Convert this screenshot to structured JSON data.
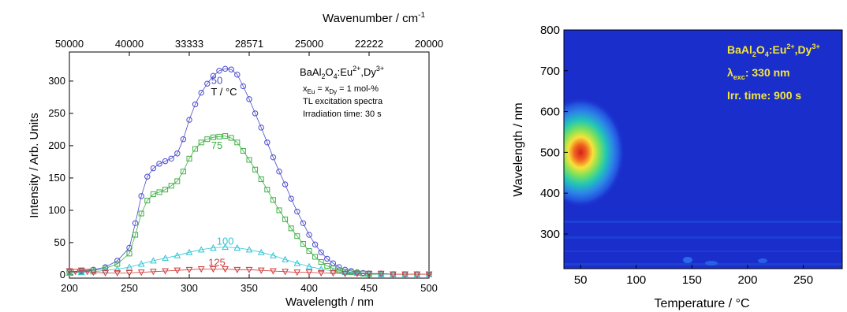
{
  "chart_data": [
    {
      "type": "scatter",
      "xlabel": "Wavelength / nm",
      "ylabel": "Intensity / Arb. Units",
      "top_axis_label": "Wavenumber / cm",
      "top_axis_label_sup": "-1",
      "xlim": [
        200,
        500
      ],
      "ylim": [
        -5,
        345
      ],
      "x_ticks": [
        "200",
        "250",
        "300",
        "350",
        "400",
        "450",
        "500"
      ],
      "y_ticks": [
        "0",
        "50",
        "100",
        "150",
        "200",
        "250",
        "300"
      ],
      "top_ticks": [
        {
          "label": "50000",
          "wl": 200
        },
        {
          "label": "40000",
          "wl": 250
        },
        {
          "label": "33333",
          "wl": 300
        },
        {
          "label": "28571",
          "wl": 350
        },
        {
          "label": "25000",
          "wl": 400
        },
        {
          "label": "22222",
          "wl": 450
        },
        {
          "label": "20000",
          "wl": 500
        }
      ],
      "annotation": {
        "title_main": "BaAl",
        "title_sub2": "2",
        "title_o": "O",
        "title_sub4": "4",
        "title_eu": ":Eu",
        "title_sup2": "2+",
        "title_dy": ",Dy",
        "title_sup3": "3+",
        "line2_x": "x",
        "line2_sub_eu": "Eu",
        "line2_eq": " = x",
        "line2_sub_dy": "Dy",
        "line2_rest": " = 1 mol-%",
        "line3": "TL excitation spectra",
        "line4": "Irradiation time: 30 s"
      },
      "temperature_header": "T / °C",
      "series": [
        {
          "name": "50",
          "color": "#4a4ad0",
          "marker": "circle",
          "x": [
            200,
            210,
            220,
            230,
            240,
            250,
            255,
            260,
            265,
            270,
            275,
            280,
            285,
            290,
            295,
            300,
            305,
            310,
            315,
            320,
            325,
            330,
            335,
            340,
            345,
            350,
            355,
            360,
            365,
            370,
            375,
            380,
            385,
            390,
            395,
            400,
            405,
            410,
            415,
            420,
            425,
            430,
            435,
            440,
            445,
            450,
            460,
            470,
            480,
            490,
            500
          ],
          "y": [
            5,
            6,
            8,
            12,
            22,
            42,
            80,
            122,
            152,
            165,
            172,
            176,
            180,
            188,
            210,
            240,
            264,
            282,
            296,
            308,
            316,
            319,
            318,
            310,
            292,
            272,
            250,
            228,
            205,
            182,
            160,
            140,
            118,
            98,
            80,
            62,
            47,
            35,
            25,
            18,
            12,
            8,
            6,
            4,
            3,
            2,
            2,
            1,
            1,
            1,
            1
          ]
        },
        {
          "name": "75",
          "color": "#3cb043",
          "marker": "square",
          "x": [
            200,
            210,
            220,
            230,
            240,
            250,
            255,
            260,
            265,
            270,
            275,
            280,
            285,
            290,
            295,
            300,
            305,
            310,
            315,
            320,
            325,
            330,
            335,
            340,
            345,
            350,
            355,
            360,
            365,
            370,
            375,
            380,
            385,
            390,
            395,
            400,
            405,
            410,
            415,
            420,
            425,
            430,
            435,
            440,
            445,
            450,
            460,
            470,
            480,
            490,
            500
          ],
          "y": [
            4,
            5,
            7,
            10,
            17,
            33,
            62,
            95,
            115,
            125,
            128,
            132,
            138,
            145,
            160,
            180,
            195,
            205,
            210,
            213,
            214,
            215,
            212,
            205,
            192,
            178,
            163,
            148,
            132,
            116,
            100,
            86,
            72,
            60,
            48,
            37,
            28,
            20,
            14,
            10,
            7,
            5,
            4,
            3,
            2,
            1,
            1,
            1,
            1,
            1,
            1
          ]
        },
        {
          "name": "100",
          "color": "#2ec4d6",
          "marker": "triangle-up",
          "x": [
            200,
            210,
            220,
            230,
            240,
            250,
            260,
            270,
            280,
            290,
            300,
            310,
            320,
            330,
            340,
            350,
            360,
            370,
            380,
            390,
            400,
            410,
            420,
            430,
            440,
            450,
            460,
            470,
            480,
            490,
            500
          ],
          "y": [
            3,
            4,
            5,
            7,
            9,
            12,
            17,
            22,
            26,
            30,
            35,
            39,
            42,
            43,
            42,
            39,
            35,
            30,
            24,
            18,
            13,
            9,
            6,
            4,
            3,
            2,
            1,
            1,
            1,
            1,
            1
          ]
        },
        {
          "name": "125",
          "color": "#d03a3a",
          "marker": "triangle-down",
          "x": [
            200,
            205,
            210,
            215,
            220,
            230,
            240,
            250,
            260,
            270,
            280,
            290,
            300,
            310,
            320,
            330,
            340,
            350,
            360,
            370,
            380,
            390,
            400,
            410,
            420,
            430,
            440,
            450,
            460,
            470,
            480,
            490,
            500
          ],
          "y": [
            6,
            5,
            7,
            5,
            4,
            3,
            3,
            3,
            4,
            5,
            6,
            7,
            8,
            9,
            9,
            9,
            8,
            8,
            7,
            6,
            5,
            4,
            4,
            3,
            3,
            2,
            2,
            2,
            2,
            1,
            1,
            1,
            1
          ]
        }
      ]
    },
    {
      "type": "heatmap",
      "xlabel": "Temperature / °C",
      "ylabel": "Wavelength / nm",
      "xlim": [
        35,
        285
      ],
      "ylim": [
        215,
        800
      ],
      "x_ticks": [
        "50",
        "100",
        "150",
        "200",
        "250"
      ],
      "y_ticks": [
        "300",
        "400",
        "500",
        "600",
        "700",
        "800"
      ],
      "hotspot": {
        "temperature": 50,
        "wavelength": 500,
        "peak": "max"
      },
      "background_color": "#1a2ecc",
      "annotation": {
        "l1_main": "BaAl",
        "l1_sub2": "2",
        "l1_o": "O",
        "l1_sub4": "4",
        "l1_eu": ":Eu",
        "l1_sup2": "2+",
        "l1_dy": ",Dy",
        "l1_sup3": "3+",
        "l2_lambda": "λ",
        "l2_sub": "exc",
        "l2_rest": ": 330 nm",
        "l3": "Irr. time: 900 s",
        "color": "#f5e63a"
      }
    }
  ]
}
